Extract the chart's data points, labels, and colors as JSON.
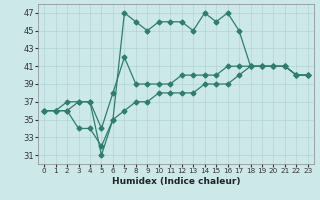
{
  "xlabel": "Humidex (Indice chaleur)",
  "xlim": [
    -0.5,
    23.5
  ],
  "ylim": [
    30,
    48
  ],
  "yticks": [
    31,
    33,
    35,
    37,
    39,
    41,
    43,
    45,
    47
  ],
  "xticks": [
    0,
    1,
    2,
    3,
    4,
    5,
    6,
    7,
    8,
    9,
    10,
    11,
    12,
    13,
    14,
    15,
    16,
    17,
    18,
    19,
    20,
    21,
    22,
    23
  ],
  "bg_color": "#cce8e8",
  "grid_color": "#b0d4d4",
  "line_color": "#2e7d6e",
  "line1_x": [
    0,
    1,
    2,
    3,
    4,
    5,
    6,
    7,
    8,
    9,
    10,
    11,
    12,
    13,
    14,
    15,
    16,
    17,
    18,
    19,
    20,
    21,
    22,
    23
  ],
  "line1_y": [
    36,
    36,
    36,
    37,
    37,
    31,
    35,
    47,
    46,
    45,
    46,
    46,
    46,
    45,
    47,
    46,
    47,
    45,
    41,
    41,
    41,
    41,
    40,
    40
  ],
  "line2_x": [
    0,
    1,
    2,
    3,
    4,
    5,
    6,
    7,
    8,
    9,
    10,
    11,
    12,
    13,
    14,
    15,
    16,
    17,
    18,
    19,
    20,
    21,
    22,
    23
  ],
  "line2_y": [
    36,
    36,
    37,
    37,
    37,
    34,
    38,
    42,
    39,
    39,
    39,
    39,
    40,
    40,
    40,
    40,
    41,
    41,
    41,
    41,
    41,
    41,
    40,
    40
  ],
  "line3_x": [
    0,
    1,
    2,
    3,
    4,
    5,
    6,
    7,
    8,
    9,
    10,
    11,
    12,
    13,
    14,
    15,
    16,
    17,
    18,
    19,
    20,
    21,
    22,
    23
  ],
  "line3_y": [
    36,
    36,
    36,
    34,
    34,
    32,
    35,
    36,
    37,
    37,
    38,
    38,
    38,
    38,
    39,
    39,
    39,
    40,
    41,
    41,
    41,
    41,
    40,
    40
  ]
}
